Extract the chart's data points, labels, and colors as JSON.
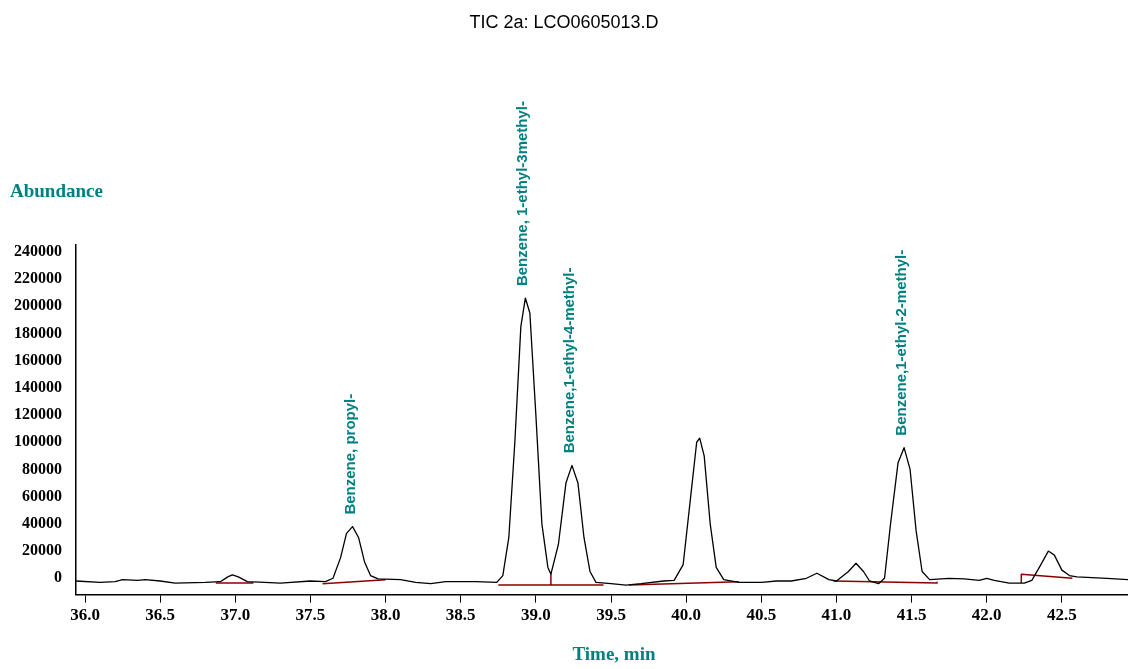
{
  "chart_data": {
    "type": "line",
    "title": "TIC 2a: LCO0605013.D",
    "xlabel": "Time, min",
    "ylabel": "Abundance",
    "legend": false,
    "grid": false,
    "xlim": [
      35.94,
      42.94
    ],
    "ylim": [
      -12000,
      245000
    ],
    "xticks": [
      {
        "value": 36,
        "label": "36.0"
      },
      {
        "value": 36.5,
        "label": "36.5"
      },
      {
        "value": 37,
        "label": "37.0"
      },
      {
        "value": 37.5,
        "label": "37.5"
      },
      {
        "value": 38,
        "label": "38.0"
      },
      {
        "value": 38.5,
        "label": "38.5"
      },
      {
        "value": 39,
        "label": "39.0"
      },
      {
        "value": 39.5,
        "label": "39.5"
      },
      {
        "value": 40,
        "label": "40.0"
      },
      {
        "value": 40.5,
        "label": "40.5"
      },
      {
        "value": 41,
        "label": "41.0"
      },
      {
        "value": 41.5,
        "label": "41.5"
      },
      {
        "value": 42,
        "label": "42.0"
      },
      {
        "value": 42.5,
        "label": "42.5"
      }
    ],
    "yticks": [
      0,
      20000,
      40000,
      60000,
      80000,
      100000,
      120000,
      140000,
      160000,
      180000,
      200000,
      220000,
      240000
    ],
    "series": [
      {
        "color": "#000000",
        "x": [
          35.94,
          36.1,
          36.2,
          36.25,
          36.35,
          36.4,
          36.5,
          36.6,
          36.8,
          36.9,
          36.95,
          36.98,
          37.02,
          37.08,
          37.3,
          37.5,
          37.6,
          37.65,
          37.7,
          37.74,
          37.78,
          37.82,
          37.86,
          37.9,
          37.95,
          38.1,
          38.2,
          38.3,
          38.4,
          38.6,
          38.74,
          38.78,
          38.82,
          38.86,
          38.9,
          38.93,
          38.96,
          39.0,
          39.04,
          39.08,
          39.1,
          39.15,
          39.2,
          39.24,
          39.28,
          39.32,
          39.36,
          39.4,
          39.5,
          39.6,
          39.7,
          39.85,
          39.92,
          39.98,
          40.03,
          40.07,
          40.09,
          40.12,
          40.16,
          40.2,
          40.25,
          40.35,
          40.5,
          40.6,
          40.7,
          40.8,
          40.87,
          40.95,
          41.0,
          41.08,
          41.13,
          41.18,
          41.22,
          41.28,
          41.32,
          41.36,
          41.41,
          41.45,
          41.49,
          41.53,
          41.57,
          41.62,
          41.75,
          41.85,
          41.95,
          42.0,
          42.05,
          42.15,
          42.25,
          42.3,
          42.35,
          42.41,
          42.45,
          42.5,
          42.55,
          42.6,
          42.8,
          42.94
        ],
        "values": [
          -2000,
          -3000,
          -2500,
          -1000,
          -1500,
          -1000,
          -2000,
          -3500,
          -3000,
          -2500,
          1000,
          2500,
          1000,
          -2500,
          -3500,
          -2000,
          -2500,
          0,
          15000,
          33000,
          38000,
          30000,
          12000,
          2000,
          -500,
          -1000,
          -3000,
          -4000,
          -2500,
          -2500,
          -3000,
          2000,
          30000,
          100000,
          185000,
          206000,
          195000,
          120000,
          40000,
          8000,
          3000,
          25000,
          70000,
          83000,
          70000,
          30000,
          5000,
          -3000,
          -4000,
          -5000,
          -4000,
          -2000,
          -1500,
          10000,
          60000,
          100000,
          103000,
          90000,
          40000,
          8000,
          -1000,
          -3000,
          -3000,
          -2000,
          -2000,
          0,
          3700,
          -1000,
          -2000,
          5000,
          11000,
          5000,
          -2000,
          -4000,
          0,
          40000,
          85000,
          96000,
          80000,
          35000,
          5000,
          -1000,
          0,
          -500,
          -1500,
          0,
          -1500,
          -3500,
          -3500,
          -1500,
          8000,
          20000,
          17000,
          6000,
          2000,
          1000,
          0,
          -1000
        ]
      },
      {
        "color": "#8b0000",
        "x": [
          36.87,
          37.12
        ],
        "values": [
          -3500,
          -3500
        ]
      },
      {
        "color": "#8b0000",
        "x": [
          37.58,
          38.0
        ],
        "values": [
          -4000,
          -1000
        ]
      },
      {
        "color": "#8b0000",
        "x": [
          38.75,
          39.1,
          39.1,
          39.1,
          39.45
        ],
        "values": [
          -5000,
          -5000,
          3000,
          -5000,
          -5000
        ]
      },
      {
        "color": "#8b0000",
        "x": [
          39.62,
          40.35
        ],
        "values": [
          -5000,
          -2500
        ]
      },
      {
        "color": "#8b0000",
        "x": [
          40.98,
          41.67,
          41.67
        ],
        "values": [
          -2000,
          -3500,
          -2500
        ]
      },
      {
        "color": "#8b0000",
        "x": [
          42.23,
          42.23,
          42.57
        ],
        "values": [
          -3500,
          3000,
          0
        ]
      }
    ],
    "annotations": [
      {
        "text": "Benzene, propyl-",
        "x": 37.78,
        "y": 38000
      },
      {
        "text": "Benzene, 1-ethyl-3methyl-",
        "x": 38.93,
        "y": 206000
      },
      {
        "text": "Benzene,1-ethyl-4-methyl-",
        "x": 39.24,
        "y": 83000
      },
      {
        "text": "Benzene,1-ethyl-2-methyl-",
        "x": 41.45,
        "y": 96000
      }
    ]
  }
}
